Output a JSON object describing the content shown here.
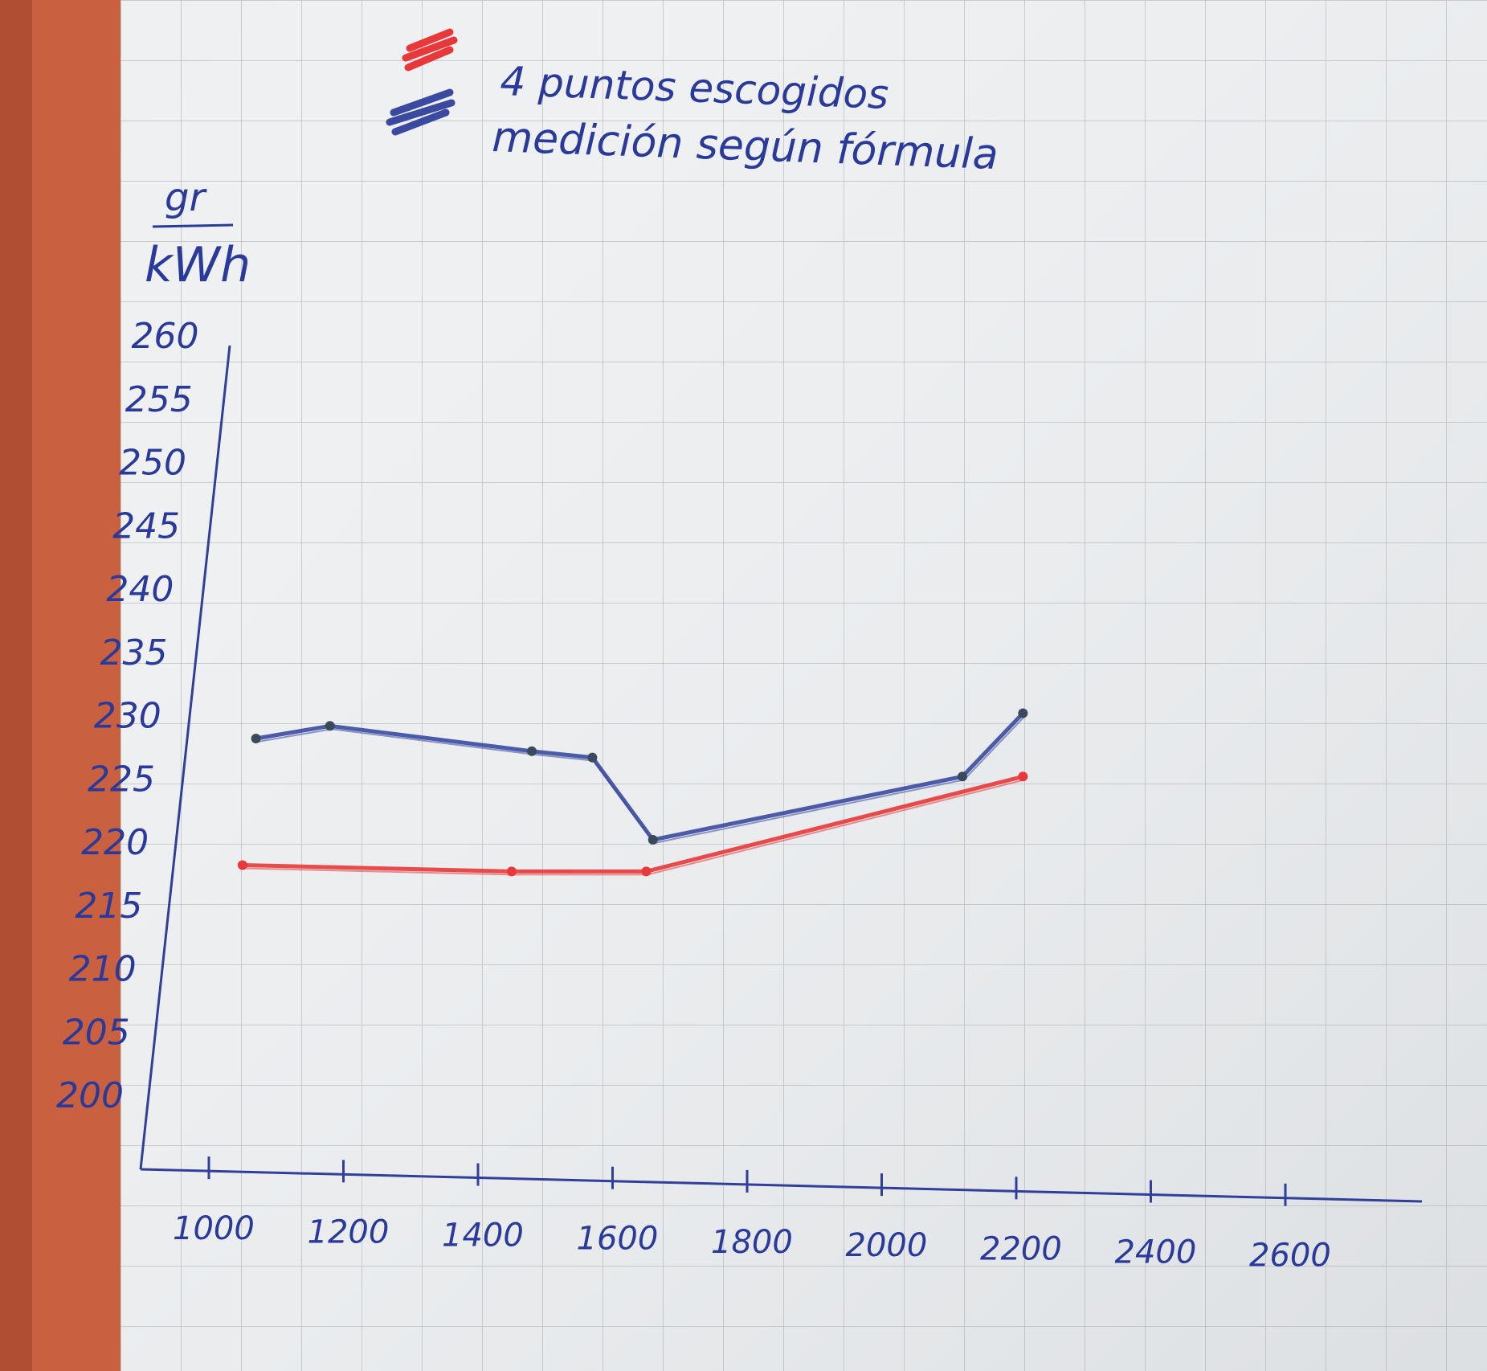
{
  "legend": {
    "red_label": "4 puntos escogidos",
    "blue_label": "medición según fórmula",
    "red_color": "#e8383a",
    "blue_color": "#3b4aa0"
  },
  "chart_data": {
    "type": "line",
    "ylabel_num": "gr",
    "ylabel_den": "kWh",
    "xlabel": "",
    "x_ticks": [
      "1000",
      "1200",
      "1400",
      "1600",
      "1800",
      "2000",
      "2200",
      "2400",
      "2600"
    ],
    "y_ticks": [
      "200",
      "205",
      "210",
      "215",
      "220",
      "225",
      "230",
      "235",
      "240",
      "245",
      "250",
      "255",
      "260"
    ],
    "xlim": [
      900,
      2800
    ],
    "ylim": [
      195,
      262
    ],
    "grid": true,
    "legend_position": "top",
    "series": [
      {
        "color": "#3b4aa0",
        "x": [
          1070,
          1180,
          1480,
          1570,
          1660,
          2120,
          2210
        ],
        "y": [
          228,
          229,
          227,
          226.5,
          220,
          225,
          230
        ]
      },
      {
        "color": "#e8383a",
        "x": [
          1050,
          1450,
          1650,
          2210
        ],
        "y": [
          218,
          217.5,
          217.5,
          225
        ]
      }
    ]
  }
}
